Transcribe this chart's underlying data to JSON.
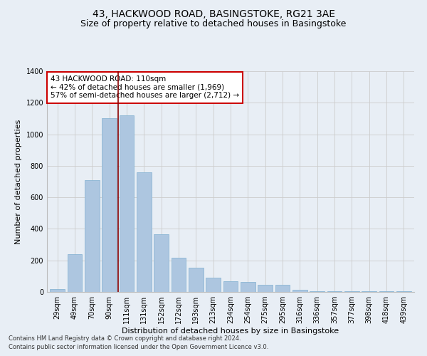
{
  "title1": "43, HACKWOOD ROAD, BASINGSTOKE, RG21 3AE",
  "title2": "Size of property relative to detached houses in Basingstoke",
  "xlabel": "Distribution of detached houses by size in Basingstoke",
  "ylabel": "Number of detached properties",
  "bar_labels": [
    "29sqm",
    "49sqm",
    "70sqm",
    "90sqm",
    "111sqm",
    "131sqm",
    "152sqm",
    "172sqm",
    "193sqm",
    "213sqm",
    "234sqm",
    "254sqm",
    "275sqm",
    "295sqm",
    "316sqm",
    "336sqm",
    "357sqm",
    "377sqm",
    "398sqm",
    "418sqm",
    "439sqm"
  ],
  "bar_values": [
    20,
    240,
    710,
    1100,
    1120,
    760,
    365,
    215,
    155,
    90,
    70,
    65,
    45,
    45,
    15,
    5,
    3,
    3,
    3,
    3,
    3
  ],
  "bar_color": "#adc6e0",
  "bar_edgecolor": "#7fafd0",
  "highlight_color": "#8b0000",
  "property_bin_index": 4,
  "annotation_line1": "43 HACKWOOD ROAD: 110sqm",
  "annotation_line2": "← 42% of detached houses are smaller (1,969)",
  "annotation_line3": "57% of semi-detached houses are larger (2,712) →",
  "annotation_box_color": "#ffffff",
  "annotation_border_color": "#cc0000",
  "ylim": [
    0,
    1400
  ],
  "yticks": [
    0,
    200,
    400,
    600,
    800,
    1000,
    1200,
    1400
  ],
  "grid_color": "#cccccc",
  "bg_color": "#e8eef5",
  "footer1": "Contains HM Land Registry data © Crown copyright and database right 2024.",
  "footer2": "Contains public sector information licensed under the Open Government Licence v3.0.",
  "title_fontsize": 10,
  "subtitle_fontsize": 9,
  "axis_label_fontsize": 8,
  "tick_fontsize": 7,
  "annotation_fontsize": 7.5,
  "footer_fontsize": 6
}
